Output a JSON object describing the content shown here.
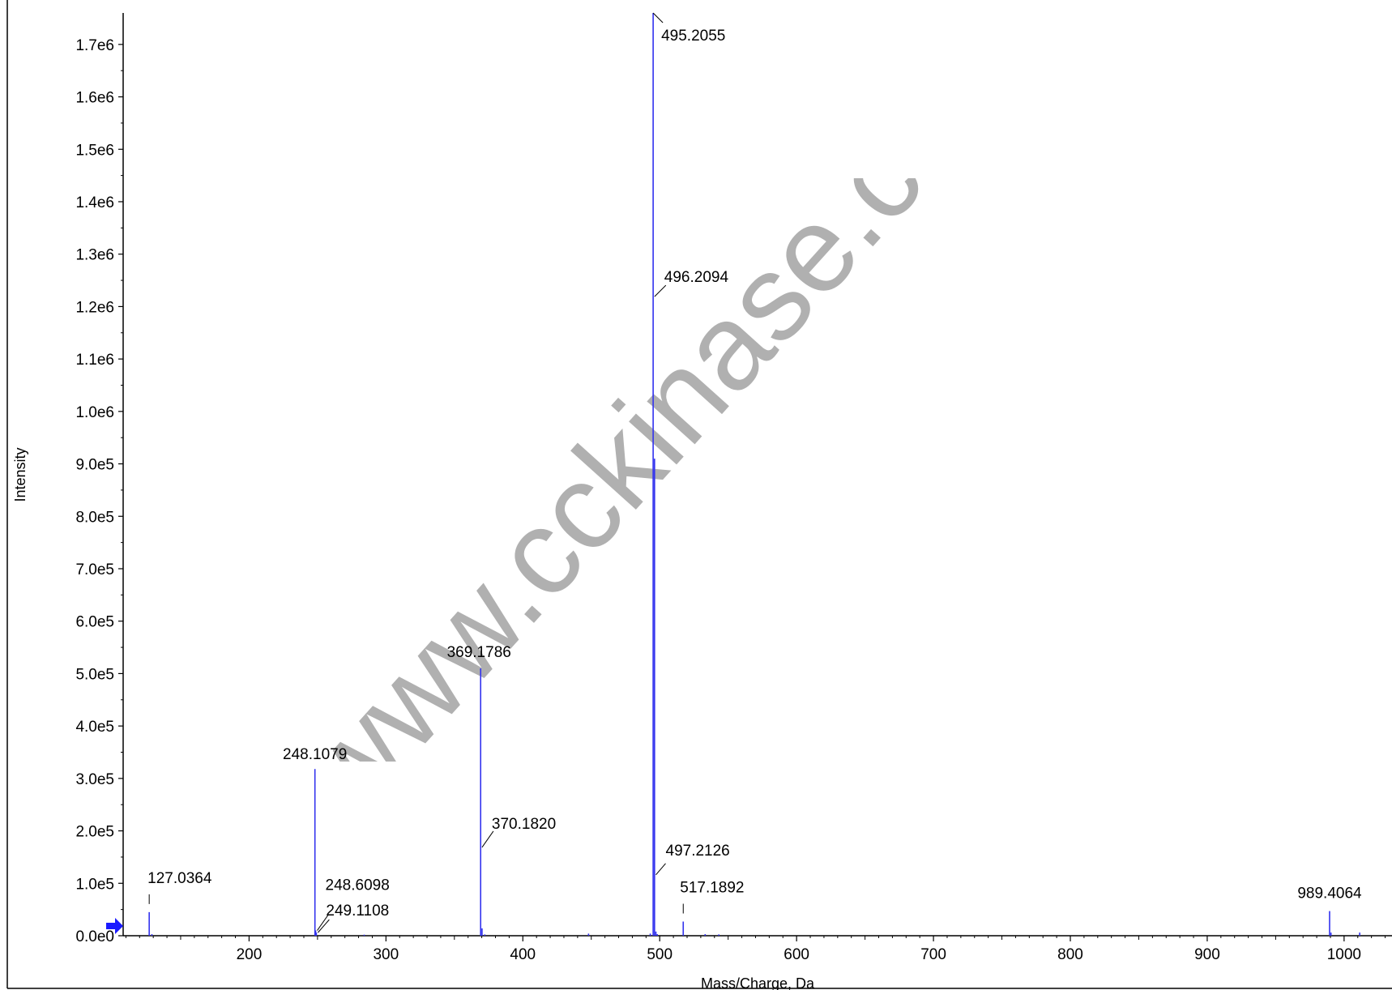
{
  "chart_data": {
    "type": "bar",
    "xlabel": "Mass/Charge, Da",
    "ylabel": "Intensity",
    "xlim": [
      108,
      1035
    ],
    "ylim": [
      0,
      1760000
    ],
    "x_ticks": [
      200,
      300,
      400,
      500,
      600,
      700,
      800,
      900,
      1000
    ],
    "x_tick_labels": [
      "200",
      "300",
      "400",
      "500",
      "600",
      "700",
      "800",
      "900",
      "1000"
    ],
    "y_ticks": [
      0,
      100000,
      200000,
      300000,
      400000,
      500000,
      600000,
      700000,
      800000,
      900000,
      1000000,
      1100000,
      1200000,
      1300000,
      1400000,
      1500000,
      1600000,
      1700000
    ],
    "y_tick_labels": [
      "0.0e0",
      "1.0e5",
      "2.0e5",
      "3.0e5",
      "4.0e5",
      "5.0e5",
      "6.0e5",
      "7.0e5",
      "8.0e5",
      "9.0e5",
      "1.0e6",
      "1.1e6",
      "1.2e6",
      "1.3e6",
      "1.4e6",
      "1.5e6",
      "1.6e6",
      "1.7e6"
    ],
    "grid": false,
    "series": [
      {
        "color": "#3333ee",
        "peaks": [
          {
            "mz": 127.0364,
            "intensity": 45000,
            "label": "127.0364"
          },
          {
            "mz": 248.1079,
            "intensity": 318000,
            "label": "248.1079"
          },
          {
            "mz": 248.6098,
            "intensity": 10000,
            "label": "248.6098"
          },
          {
            "mz": 249.1108,
            "intensity": 6000,
            "label": "249.1108"
          },
          {
            "mz": 369.1786,
            "intensity": 510000,
            "label": "369.1786"
          },
          {
            "mz": 370.182,
            "intensity": 14000,
            "label": "370.1820"
          },
          {
            "mz": 495.2055,
            "intensity": 1760000,
            "label": "495.2055"
          },
          {
            "mz": 496.2094,
            "intensity": 910000,
            "label": "496.2094"
          },
          {
            "mz": 497.2126,
            "intensity": 8000,
            "label": "497.2126"
          },
          {
            "mz": 517.1892,
            "intensity": 27000,
            "label": "517.1892"
          },
          {
            "mz": 989.4064,
            "intensity": 47000,
            "label": "989.4064"
          }
        ],
        "minor_peaks": [
          {
            "mz": 129.0,
            "intensity": 3000
          },
          {
            "mz": 284.1,
            "intensity": 2000
          },
          {
            "mz": 372.2,
            "intensity": 2500
          },
          {
            "mz": 448.0,
            "intensity": 4000
          },
          {
            "mz": 493.1,
            "intensity": 4000
          },
          {
            "mz": 498.2,
            "intensity": 3000
          },
          {
            "mz": 533.2,
            "intensity": 3000
          },
          {
            "mz": 543.2,
            "intensity": 2500
          },
          {
            "mz": 990.4,
            "intensity": 6000
          },
          {
            "mz": 1011.4,
            "intensity": 6000
          }
        ]
      }
    ]
  },
  "watermark": {
    "text": "www.cckinase.co"
  }
}
